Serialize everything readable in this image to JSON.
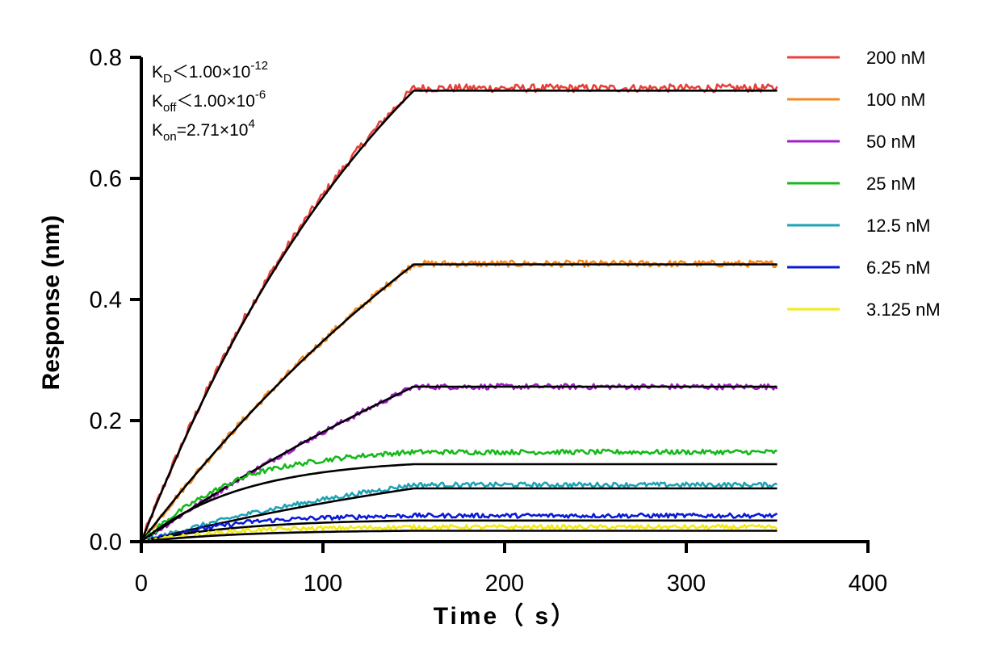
{
  "chart_data": {
    "type": "line",
    "xlabel": "Time（ s）",
    "ylabel": "Response (nm)",
    "xlim": [
      0,
      400
    ],
    "ylim": [
      0,
      0.8
    ],
    "x_ticks": [
      "0",
      "100",
      "200",
      "300",
      "400"
    ],
    "y_ticks": [
      "0.0",
      "0.2",
      "0.4",
      "0.6",
      "0.8"
    ],
    "grid": false,
    "legend_position": "top-right",
    "annotations": [
      {
        "base": "K",
        "sub": "D",
        "text": "＜1.00×10",
        "sup": "-12"
      },
      {
        "base": "K",
        "sub": "off",
        "text": "＜1.00×10",
        "sup": "-6"
      },
      {
        "base": "K",
        "sub": "on",
        "text": "=2.71×10",
        "sup": "4"
      }
    ],
    "association_end_s": 150,
    "end_s": 350,
    "series": [
      {
        "name": "200 nM",
        "color": "#e8413c",
        "fit_plateau": 0.745,
        "fit_curvature": 0.0062,
        "data_offset": 0.004
      },
      {
        "name": "100 nM",
        "color": "#f5891f",
        "fit_plateau": 0.458,
        "fit_curvature": 0.0035,
        "data_offset": 0.001
      },
      {
        "name": "50 nM",
        "color": "#a21fc8",
        "fit_plateau": 0.256,
        "fit_curvature": 0.0025,
        "data_offset": 0.0
      },
      {
        "name": "25 nM",
        "color": "#16b91a",
        "fit_plateau": 0.128,
        "fit_curvature": 0.018,
        "data_offset": 0.02
      },
      {
        "name": "12.5 nM",
        "color": "#1ea3b5",
        "fit_plateau": 0.088,
        "fit_curvature": 0.0035,
        "data_offset": 0.006
      },
      {
        "name": "6.25 nM",
        "color": "#0a1ad6",
        "fit_plateau": 0.035,
        "fit_curvature": 0.018,
        "data_offset": 0.008
      },
      {
        "name": "3.125 nM",
        "color": "#f2ea16",
        "fit_plateau": 0.018,
        "fit_curvature": 0.018,
        "data_offset": 0.006
      }
    ],
    "fit_color": "#000000"
  }
}
